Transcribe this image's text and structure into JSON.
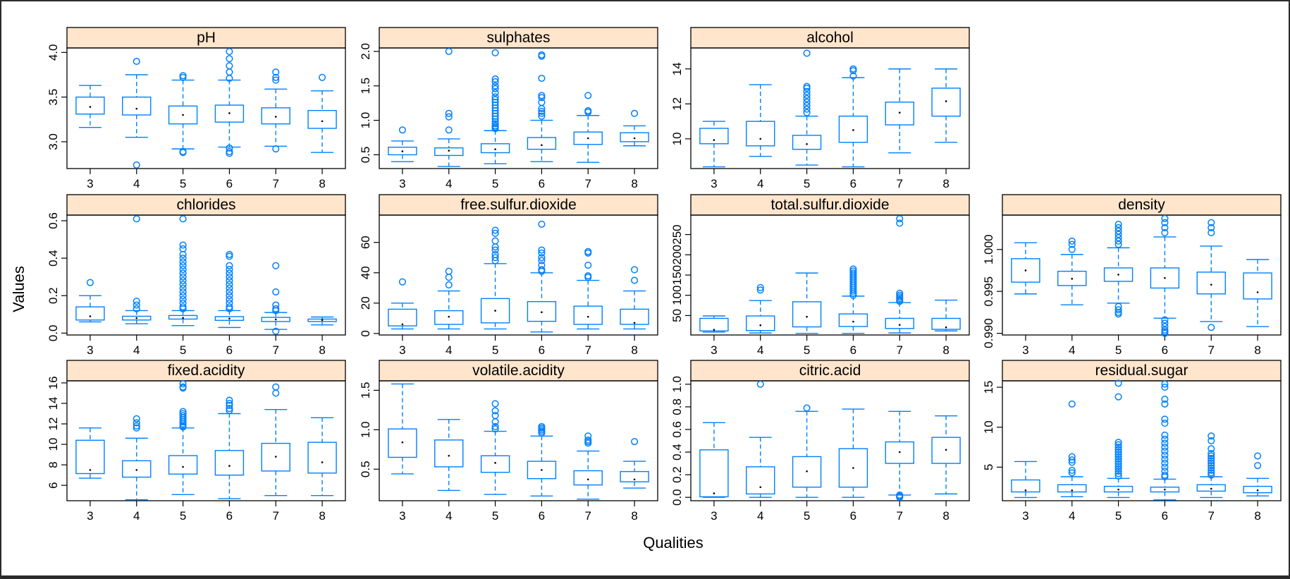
{
  "xlabel": "Qualities",
  "ylabel": "Values",
  "colors": {
    "box": "#0080ff",
    "strip": "#ffe5cc",
    "axis": "#000000"
  },
  "chart_data": [
    {
      "type": "box",
      "title": "pH",
      "categories": [
        "3",
        "4",
        "5",
        "6",
        "7",
        "8"
      ],
      "ylim": [
        2.7,
        4.05
      ],
      "yticks": [
        "3.0",
        "3.5",
        "4.0"
      ],
      "boxes": [
        {
          "lw": 3.16,
          "q1": 3.31,
          "med": 3.39,
          "q3": 3.5,
          "uw": 3.63,
          "out": []
        },
        {
          "lw": 3.05,
          "q1": 3.3,
          "med": 3.37,
          "q3": 3.5,
          "uw": 3.75,
          "out": [
            3.9,
            2.74
          ]
        },
        {
          "lw": 2.92,
          "q1": 3.2,
          "med": 3.3,
          "q3": 3.4,
          "uw": 3.69,
          "out": [
            3.72,
            3.74,
            2.88,
            2.89
          ]
        },
        {
          "lw": 2.94,
          "q1": 3.22,
          "med": 3.32,
          "q3": 3.41,
          "uw": 3.69,
          "out": [
            4.01,
            3.93,
            3.85,
            3.78,
            3.71,
            2.93,
            2.89,
            2.87
          ]
        },
        {
          "lw": 2.95,
          "q1": 3.2,
          "med": 3.28,
          "q3": 3.38,
          "uw": 3.59,
          "out": [
            3.78,
            3.72,
            3.69,
            2.92
          ]
        },
        {
          "lw": 2.88,
          "q1": 3.15,
          "med": 3.23,
          "q3": 3.35,
          "uw": 3.57,
          "out": [
            3.72
          ]
        }
      ]
    },
    {
      "type": "box",
      "title": "sulphates",
      "categories": [
        "3",
        "4",
        "5",
        "6",
        "7",
        "8"
      ],
      "ylim": [
        0.3,
        2.05
      ],
      "yticks": [
        "0.5",
        "1.0",
        "1.5",
        "2.0"
      ],
      "boxes": [
        {
          "lw": 0.4,
          "q1": 0.5,
          "med": 0.55,
          "q3": 0.61,
          "uw": 0.7,
          "out": [
            0.86
          ]
        },
        {
          "lw": 0.33,
          "q1": 0.49,
          "med": 0.56,
          "q3": 0.6,
          "uw": 0.73,
          "out": [
            2.0,
            1.1,
            1.05,
            0.86
          ]
        },
        {
          "lw": 0.37,
          "q1": 0.53,
          "med": 0.58,
          "q3": 0.66,
          "uw": 0.85,
          "out": [
            1.98,
            1.6,
            1.56,
            1.5,
            1.46,
            1.4,
            1.34,
            1.3,
            1.26,
            1.22,
            1.18,
            1.14,
            1.1,
            1.06,
            1.02,
            0.98,
            0.95,
            0.92,
            0.9,
            0.88
          ]
        },
        {
          "lw": 0.4,
          "q1": 0.58,
          "med": 0.64,
          "q3": 0.75,
          "uw": 1.0,
          "out": [
            1.95,
            1.93,
            1.61,
            1.36,
            1.33,
            1.26,
            1.17,
            1.13,
            1.1,
            1.06
          ]
        },
        {
          "lw": 0.39,
          "q1": 0.65,
          "med": 0.74,
          "q3": 0.83,
          "uw": 1.07,
          "out": [
            1.36,
            1.14,
            1.12
          ]
        },
        {
          "lw": 0.63,
          "q1": 0.69,
          "med": 0.74,
          "q3": 0.82,
          "uw": 0.92,
          "out": [
            1.1
          ]
        }
      ]
    },
    {
      "type": "box",
      "title": "alcohol",
      "categories": [
        "3",
        "4",
        "5",
        "6",
        "7",
        "8"
      ],
      "ylim": [
        8.3,
        15.2
      ],
      "yticks": [
        "10",
        "12",
        "14"
      ],
      "boxes": [
        {
          "lw": 8.4,
          "q1": 9.72,
          "med": 9.93,
          "q3": 10.6,
          "uw": 11.0,
          "out": []
        },
        {
          "lw": 9.0,
          "q1": 9.6,
          "med": 10.0,
          "q3": 11.0,
          "uw": 13.1,
          "out": []
        },
        {
          "lw": 8.5,
          "q1": 9.4,
          "med": 9.7,
          "q3": 10.2,
          "uw": 11.3,
          "out": [
            14.9,
            13.0,
            12.9,
            12.7,
            12.5,
            12.3,
            12.1,
            11.9,
            11.7,
            11.5
          ]
        },
        {
          "lw": 8.4,
          "q1": 9.8,
          "med": 10.5,
          "q3": 11.3,
          "uw": 13.5,
          "out": [
            14.0,
            13.9,
            13.6
          ]
        },
        {
          "lw": 9.2,
          "q1": 10.8,
          "med": 11.5,
          "q3": 12.1,
          "uw": 14.0,
          "out": []
        },
        {
          "lw": 9.8,
          "q1": 11.3,
          "med": 12.15,
          "q3": 12.9,
          "uw": 14.0,
          "out": []
        }
      ]
    },
    {
      "type": "box",
      "title": "chlorides",
      "categories": [
        "3",
        "4",
        "5",
        "6",
        "7",
        "8"
      ],
      "ylim": [
        -0.01,
        0.63
      ],
      "yticks": [
        "0.0",
        "0.2",
        "0.4",
        "0.6"
      ],
      "boxes": [
        {
          "lw": 0.06,
          "q1": 0.07,
          "med": 0.09,
          "q3": 0.14,
          "uw": 0.2,
          "out": [
            0.27
          ]
        },
        {
          "lw": 0.05,
          "q1": 0.07,
          "med": 0.08,
          "q3": 0.09,
          "uw": 0.12,
          "out": [
            0.61,
            0.17,
            0.15,
            0.13
          ]
        },
        {
          "lw": 0.04,
          "q1": 0.075,
          "med": 0.081,
          "q3": 0.094,
          "uw": 0.12,
          "out": [
            0.61,
            0.47,
            0.45,
            0.42,
            0.4,
            0.38,
            0.36,
            0.34,
            0.32,
            0.3,
            0.28,
            0.26,
            0.24,
            0.22,
            0.2,
            0.18,
            0.16,
            0.14,
            0.13
          ]
        },
        {
          "lw": 0.03,
          "q1": 0.068,
          "med": 0.078,
          "q3": 0.088,
          "uw": 0.12,
          "out": [
            0.42,
            0.41,
            0.36,
            0.34,
            0.32,
            0.3,
            0.28,
            0.26,
            0.24,
            0.22,
            0.2,
            0.18,
            0.16,
            0.14,
            0.13
          ]
        },
        {
          "lw": 0.02,
          "q1": 0.062,
          "med": 0.073,
          "q3": 0.084,
          "uw": 0.11,
          "out": [
            0.36,
            0.22,
            0.15,
            0.13,
            0.12,
            0.01
          ]
        },
        {
          "lw": 0.044,
          "q1": 0.062,
          "med": 0.07,
          "q3": 0.075,
          "uw": 0.086,
          "out": []
        }
      ]
    },
    {
      "type": "box",
      "title": "free.sulfur.dioxide",
      "categories": [
        "3",
        "4",
        "5",
        "6",
        "7",
        "8"
      ],
      "ylim": [
        -1,
        78
      ],
      "yticks": [
        "0",
        "20",
        "40",
        "60"
      ],
      "boxes": [
        {
          "lw": 3,
          "q1": 5,
          "med": 6,
          "q3": 16,
          "uw": 20,
          "out": [
            34
          ]
        },
        {
          "lw": 3,
          "q1": 6,
          "med": 11,
          "q3": 15,
          "uw": 28,
          "out": [
            41,
            37,
            32
          ]
        },
        {
          "lw": 3,
          "q1": 7,
          "med": 15,
          "q3": 23,
          "uw": 46,
          "out": [
            68,
            66,
            61,
            57,
            55,
            52,
            50,
            48
          ]
        },
        {
          "lw": 1,
          "q1": 8,
          "med": 14,
          "q3": 21,
          "uw": 40,
          "out": [
            72,
            55,
            53,
            50,
            48,
            45,
            42,
            41
          ]
        },
        {
          "lw": 3,
          "q1": 6,
          "med": 11,
          "q3": 18,
          "uw": 35,
          "out": [
            54,
            53,
            45,
            38,
            37
          ]
        },
        {
          "lw": 3,
          "q1": 6,
          "med": 7,
          "q3": 16,
          "uw": 28,
          "out": [
            42,
            35
          ]
        }
      ]
    },
    {
      "type": "box",
      "title": "total.sulfur.dioxide",
      "categories": [
        "3",
        "4",
        "5",
        "6",
        "7",
        "8"
      ],
      "ylim": [
        2,
        298
      ],
      "yticks": [
        "50",
        "100",
        "150",
        "200",
        "250"
      ],
      "boxes": [
        {
          "lw": 9,
          "q1": 12,
          "med": 15,
          "q3": 43,
          "uw": 49,
          "out": []
        },
        {
          "lw": 7,
          "q1": 13,
          "med": 26,
          "q3": 49,
          "uw": 87,
          "out": [
            119,
            113
          ]
        },
        {
          "lw": 6,
          "q1": 22,
          "med": 47,
          "q3": 84,
          "uw": 155,
          "out": []
        },
        {
          "lw": 6,
          "q1": 23,
          "med": 35,
          "q3": 54,
          "uw": 98,
          "out": [
            165,
            160,
            155,
            150,
            145,
            140,
            135,
            130,
            125,
            120,
            115,
            110,
            105,
            100
          ]
        },
        {
          "lw": 7,
          "q1": 18,
          "med": 27,
          "q3": 43,
          "uw": 82,
          "out": [
            289,
            278,
            105,
            100,
            96,
            92,
            88,
            85
          ]
        },
        {
          "lw": 12,
          "q1": 16,
          "med": 21,
          "q3": 43,
          "uw": 88,
          "out": []
        }
      ]
    },
    {
      "type": "box",
      "title": "density",
      "categories": [
        "3",
        "4",
        "5",
        "6",
        "7",
        "8"
      ],
      "ylim": [
        0.9898,
        1.0041
      ],
      "yticks": [
        "0.990",
        "0.995",
        "1.000"
      ],
      "boxes": [
        {
          "lw": 0.9947,
          "q1": 0.9961,
          "med": 0.9975,
          "q3": 0.9989,
          "uw": 1.0008,
          "out": []
        },
        {
          "lw": 0.9934,
          "q1": 0.9957,
          "med": 0.9965,
          "q3": 0.9974,
          "uw": 0.9994,
          "out": [
            1.001,
            1.0,
            1.0006
          ]
        },
        {
          "lw": 0.9936,
          "q1": 0.9962,
          "med": 0.997,
          "q3": 0.9978,
          "uw": 1.0002,
          "out": [
            1.003,
            1.0026,
            1.0022,
            1.0018,
            1.0014,
            1.001,
            1.0006,
            0.9932,
            0.9928,
            0.9925,
            0.9923
          ]
        },
        {
          "lw": 0.9918,
          "q1": 0.9954,
          "med": 0.9966,
          "q3": 0.9978,
          "uw": 1.0015,
          "out": [
            1.0037,
            1.0032,
            1.0026,
            1.002,
            0.9916,
            0.9912,
            0.9908,
            0.9904,
            0.99,
            0.9902
          ]
        },
        {
          "lw": 0.9914,
          "q1": 0.9947,
          "med": 0.9958,
          "q3": 0.9973,
          "uw": 1.0004,
          "out": [
            1.0032,
            1.0026,
            1.002,
            0.9907
          ]
        },
        {
          "lw": 0.9908,
          "q1": 0.9941,
          "med": 0.9949,
          "q3": 0.9972,
          "uw": 0.9988,
          "out": []
        }
      ]
    },
    {
      "type": "box",
      "title": "fixed.acidity",
      "categories": [
        "3",
        "4",
        "5",
        "6",
        "7",
        "8"
      ],
      "ylim": [
        4.5,
        16.2
      ],
      "yticks": [
        "6",
        "8",
        "10",
        "12",
        "14",
        "16"
      ],
      "boxes": [
        {
          "lw": 6.7,
          "q1": 7.15,
          "med": 7.5,
          "q3": 10.4,
          "uw": 11.6,
          "out": []
        },
        {
          "lw": 4.6,
          "q1": 6.8,
          "med": 7.5,
          "q3": 8.4,
          "uw": 10.6,
          "out": [
            12.5,
            12.1,
            11.8,
            11.6
          ]
        },
        {
          "lw": 5.1,
          "q1": 7.1,
          "med": 7.8,
          "q3": 8.9,
          "uw": 11.6,
          "out": [
            15.9,
            15.6,
            15.5,
            13.2,
            13.0,
            12.8,
            12.6,
            12.4,
            12.2,
            12.0,
            11.8,
            11.7
          ]
        },
        {
          "lw": 4.7,
          "q1": 7.0,
          "med": 7.9,
          "q3": 9.4,
          "uw": 13.0,
          "out": [
            14.3,
            14.0,
            13.8,
            13.5,
            13.3
          ]
        },
        {
          "lw": 5.0,
          "q1": 7.4,
          "med": 8.8,
          "q3": 10.1,
          "uw": 13.4,
          "out": [
            15.6,
            15.0
          ]
        },
        {
          "lw": 5.0,
          "q1": 7.2,
          "med": 8.25,
          "q3": 10.2,
          "uw": 12.6,
          "out": []
        }
      ]
    },
    {
      "type": "box",
      "title": "volatile.acidity",
      "categories": [
        "3",
        "4",
        "5",
        "6",
        "7",
        "8"
      ],
      "ylim": [
        0.1,
        1.62
      ],
      "yticks": [
        "0.5",
        "1.0",
        "1.5"
      ],
      "boxes": [
        {
          "lw": 0.44,
          "q1": 0.65,
          "med": 0.84,
          "q3": 1.01,
          "uw": 1.58,
          "out": []
        },
        {
          "lw": 0.23,
          "q1": 0.53,
          "med": 0.67,
          "q3": 0.87,
          "uw": 1.13,
          "out": []
        },
        {
          "lw": 0.18,
          "q1": 0.46,
          "med": 0.58,
          "q3": 0.67,
          "uw": 0.98,
          "out": [
            1.33,
            1.24,
            1.18,
            1.1,
            1.04,
            1.01
          ]
        },
        {
          "lw": 0.16,
          "q1": 0.38,
          "med": 0.49,
          "q3": 0.6,
          "uw": 0.92,
          "out": [
            1.04,
            1.02,
            1.0,
            0.98,
            0.96
          ]
        },
        {
          "lw": 0.12,
          "q1": 0.3,
          "med": 0.37,
          "q3": 0.48,
          "uw": 0.73,
          "out": [
            0.92,
            0.87,
            0.85,
            0.83
          ]
        },
        {
          "lw": 0.26,
          "q1": 0.34,
          "med": 0.37,
          "q3": 0.47,
          "uw": 0.6,
          "out": [
            0.85
          ]
        }
      ]
    },
    {
      "type": "box",
      "title": "citric.acid",
      "categories": [
        "3",
        "4",
        "5",
        "6",
        "7",
        "8"
      ],
      "ylim": [
        -0.03,
        1.03
      ],
      "yticks": [
        "0.0",
        "0.2",
        "0.4",
        "0.6",
        "0.8",
        "1.0"
      ],
      "boxes": [
        {
          "lw": 0.0,
          "q1": 0.005,
          "med": 0.035,
          "q3": 0.42,
          "uw": 0.66,
          "out": []
        },
        {
          "lw": 0.0,
          "q1": 0.03,
          "med": 0.09,
          "q3": 0.27,
          "uw": 0.53,
          "out": [
            1.0
          ]
        },
        {
          "lw": 0.0,
          "q1": 0.09,
          "med": 0.23,
          "q3": 0.36,
          "uw": 0.76,
          "out": [
            0.79
          ]
        },
        {
          "lw": 0.0,
          "q1": 0.09,
          "med": 0.26,
          "q3": 0.43,
          "uw": 0.78,
          "out": []
        },
        {
          "lw": 0.02,
          "q1": 0.3,
          "med": 0.4,
          "q3": 0.49,
          "uw": 0.76,
          "out": [
            0.02,
            0.01,
            0.005,
            0.0
          ]
        },
        {
          "lw": 0.03,
          "q1": 0.3,
          "med": 0.42,
          "q3": 0.53,
          "uw": 0.72,
          "out": []
        }
      ]
    },
    {
      "type": "box",
      "title": "residual.sugar",
      "categories": [
        "3",
        "4",
        "5",
        "6",
        "7",
        "8"
      ],
      "ylim": [
        0.8,
        15.8
      ],
      "yticks": [
        "5",
        "10",
        "15"
      ],
      "boxes": [
        {
          "lw": 1.2,
          "q1": 1.9,
          "med": 2.1,
          "q3": 3.4,
          "uw": 5.7,
          "out": []
        },
        {
          "lw": 1.3,
          "q1": 1.9,
          "med": 2.1,
          "q3": 2.8,
          "uw": 3.8,
          "out": [
            12.9,
            6.3,
            5.9,
            5.6,
            4.6,
            4.3
          ]
        },
        {
          "lw": 1.2,
          "q1": 1.9,
          "med": 2.2,
          "q3": 2.6,
          "uw": 3.6,
          "out": [
            15.5,
            13.8,
            8.1,
            7.8,
            7.5,
            7.2,
            6.9,
            6.6,
            6.3,
            6.0,
            5.7,
            5.4,
            5.1,
            4.8,
            4.5,
            4.2,
            3.9
          ]
        },
        {
          "lw": 0.9,
          "q1": 1.9,
          "med": 2.2,
          "q3": 2.5,
          "uw": 3.5,
          "out": [
            15.4,
            15.0,
            13.5,
            12.9,
            11.0,
            10.5,
            9.0,
            8.5,
            8.0,
            7.5,
            7.0,
            6.5,
            6.0,
            5.5,
            5.0,
            4.5,
            4.0,
            3.8
          ]
        },
        {
          "lw": 1.2,
          "q1": 2.0,
          "med": 2.3,
          "q3": 2.8,
          "uw": 3.8,
          "out": [
            8.9,
            8.3,
            7.3,
            6.7,
            6.4,
            6.1,
            5.8,
            5.5,
            5.2,
            4.9,
            4.6,
            4.3,
            4.0
          ]
        },
        {
          "lw": 1.4,
          "q1": 1.8,
          "med": 2.1,
          "q3": 2.6,
          "uw": 3.6,
          "out": [
            6.4,
            5.2
          ]
        }
      ]
    }
  ]
}
